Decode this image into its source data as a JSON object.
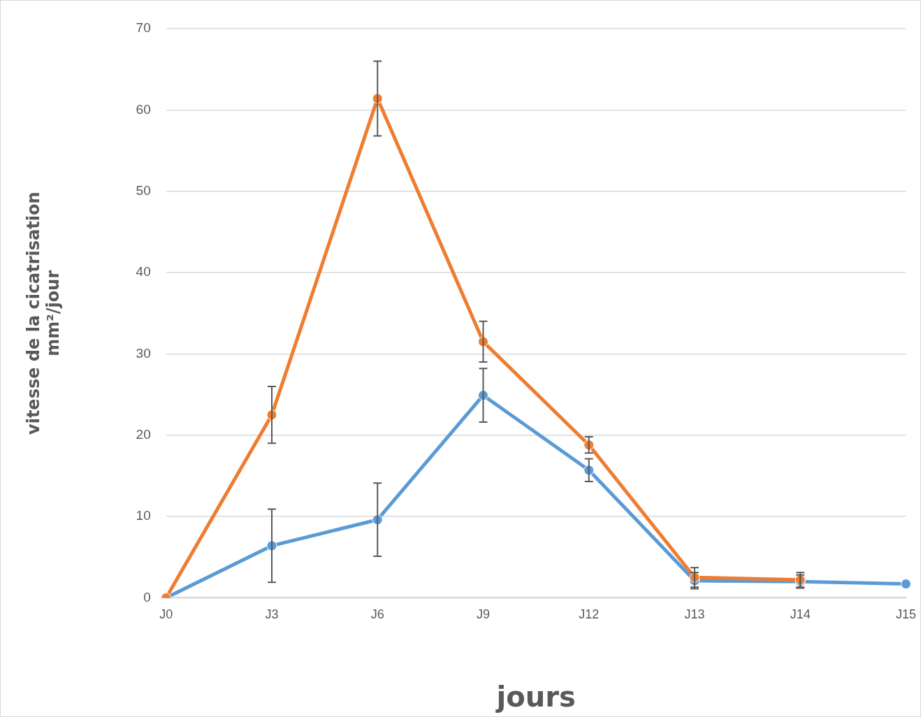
{
  "chart_data": {
    "type": "line",
    "xlabel": "jours",
    "ylabel": "vitesse de la cicatrisation\nmm²/jour",
    "categories": [
      "J0",
      "J3",
      "J6",
      "J9",
      "J12",
      "J13",
      "J14",
      "J15"
    ],
    "series": [
      {
        "color": "#5b9bd5",
        "values": [
          0,
          6.4,
          9.6,
          24.9,
          15.7,
          2.1,
          2.0,
          1.7
        ],
        "errors": [
          null,
          4.5,
          4.5,
          3.3,
          1.4,
          1.0,
          0.8,
          null
        ]
      },
      {
        "color": "#ed7d31",
        "values": [
          0,
          22.5,
          61.4,
          31.5,
          18.8,
          2.5,
          2.2,
          null
        ],
        "errors": [
          null,
          3.5,
          4.6,
          2.5,
          1.0,
          1.2,
          0.9,
          null
        ]
      }
    ],
    "ylim": [
      0,
      70
    ],
    "yticks": [
      0,
      10,
      20,
      30,
      40,
      50,
      60,
      70
    ],
    "grid": "y",
    "legend": false,
    "marker": "circle",
    "line_style": "solid"
  }
}
